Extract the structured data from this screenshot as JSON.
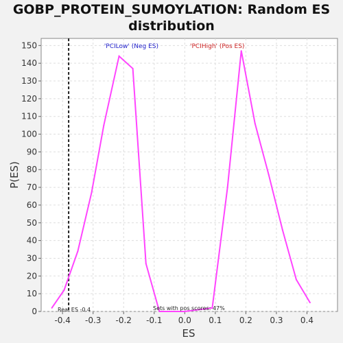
{
  "chart_data": {
    "type": "line",
    "title_line1": "GOBP_PROTEIN_SUMOYLATION: Random ES",
    "title_line2": "distribution",
    "xlabel": "ES",
    "ylabel": "P(ES)",
    "xlim": [
      -0.47,
      0.5
    ],
    "ylim": [
      0,
      154
    ],
    "x_ticks": [
      -0.4,
      -0.3,
      -0.2,
      -0.1,
      0.0,
      0.1,
      0.2,
      0.3,
      0.4
    ],
    "x_tick_labels": [
      "-0.4",
      "-0.3",
      "-0.2",
      "-0.1",
      "0.0",
      "0.1",
      "0.2",
      "0.3",
      "0.4"
    ],
    "y_ticks": [
      0,
      10,
      20,
      30,
      40,
      50,
      60,
      70,
      80,
      90,
      100,
      110,
      120,
      130,
      140,
      150
    ],
    "grid": true,
    "series": [
      {
        "color": "#ff44ff",
        "x": [
          -0.435,
          -0.395,
          -0.35,
          -0.305,
          -0.265,
          -0.215,
          -0.17,
          -0.127,
          -0.083,
          0.0,
          0.09,
          0.14,
          0.185,
          0.23,
          0.275,
          0.32,
          0.365,
          0.41
        ],
        "y": [
          2,
          12,
          34,
          67,
          105,
          144,
          137,
          27,
          0,
          0,
          2,
          70,
          147,
          106,
          77,
          46,
          18,
          5
        ]
      }
    ],
    "reference_line": {
      "x": -0.38,
      "style": "dashed",
      "color": "#222222"
    },
    "legend": {
      "placement": "top-center",
      "neg_label": "'PCILow' (Neg ES)",
      "neg_color": "#2222cc",
      "pos_label": "'PCIHigh' (Pos ES)",
      "pos_color": "#cc2222"
    },
    "annotations": {
      "real_es": "Real ES -0.4",
      "sets_pos": "Sets with pos scores: 47%"
    }
  }
}
